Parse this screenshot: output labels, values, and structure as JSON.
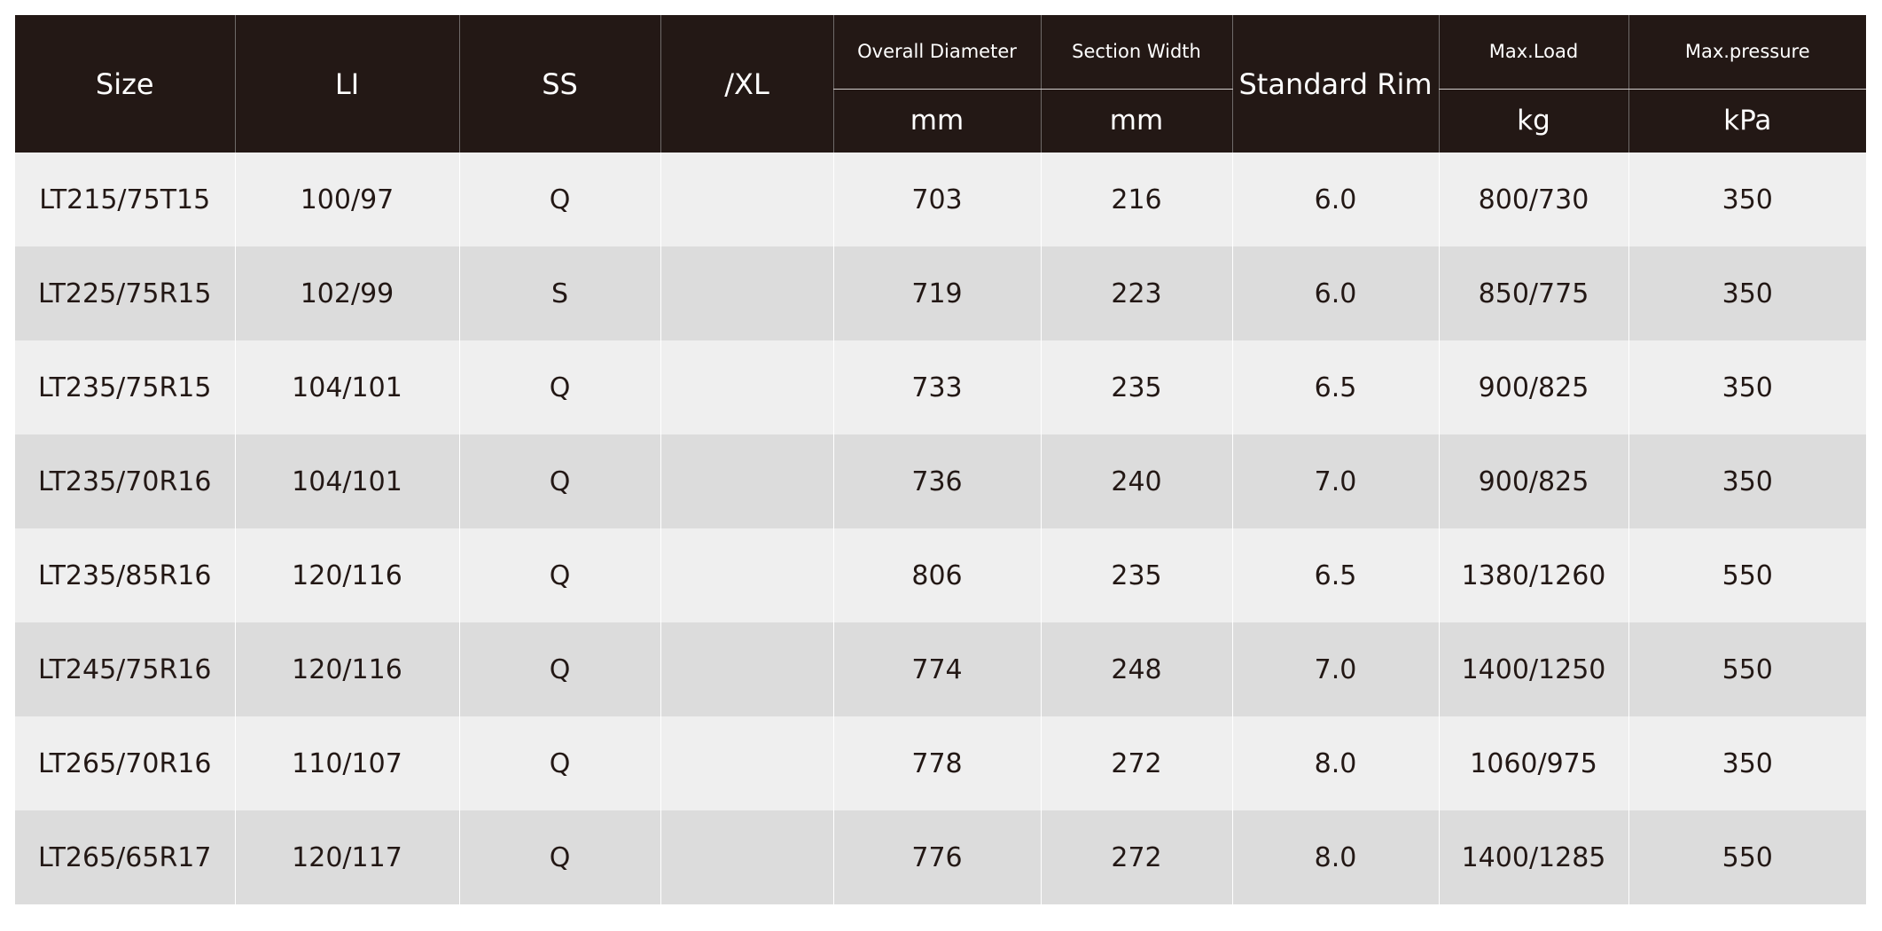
{
  "table": {
    "headers": {
      "size": "Size",
      "li": "LI",
      "ss": "SS",
      "xl": "/XL",
      "overall_diameter": "Overall Diameter",
      "overall_diameter_unit": "mm",
      "section_width": "Section Width",
      "section_width_unit": "mm",
      "standard_rim": "Standard Rim",
      "max_load": "Max.Load",
      "max_load_unit": "kg",
      "max_pressure": "Max.pressure",
      "max_pressure_unit": "kPa"
    },
    "rows": [
      {
        "size": "LT215/75T15",
        "li": "100/97",
        "ss": "Q",
        "xl": "",
        "diameter": "703",
        "width": "216",
        "rim": "6.0",
        "load": "800/730",
        "pressure": "350"
      },
      {
        "size": "LT225/75R15",
        "li": "102/99",
        "ss": "S",
        "xl": "",
        "diameter": "719",
        "width": "223",
        "rim": "6.0",
        "load": "850/775",
        "pressure": "350"
      },
      {
        "size": "LT235/75R15",
        "li": "104/101",
        "ss": "Q",
        "xl": "",
        "diameter": "733",
        "width": "235",
        "rim": "6.5",
        "load": "900/825",
        "pressure": "350"
      },
      {
        "size": "LT235/70R16",
        "li": "104/101",
        "ss": "Q",
        "xl": "",
        "diameter": "736",
        "width": "240",
        "rim": "7.0",
        "load": "900/825",
        "pressure": "350"
      },
      {
        "size": "LT235/85R16",
        "li": "120/116",
        "ss": "Q",
        "xl": "",
        "diameter": "806",
        "width": "235",
        "rim": "6.5",
        "load": "1380/1260",
        "pressure": "550"
      },
      {
        "size": "LT245/75R16",
        "li": "120/116",
        "ss": "Q",
        "xl": "",
        "diameter": "774",
        "width": "248",
        "rim": "7.0",
        "load": "1400/1250",
        "pressure": "550"
      },
      {
        "size": "LT265/70R16",
        "li": "110/107",
        "ss": "Q",
        "xl": "",
        "diameter": "778",
        "width": "272",
        "rim": "8.0",
        "load": "1060/975",
        "pressure": "350"
      },
      {
        "size": "LT265/65R17",
        "li": "120/117",
        "ss": "Q",
        "xl": "",
        "diameter": "776",
        "width": "272",
        "rim": "8.0",
        "load": "1400/1285",
        "pressure": "550"
      }
    ]
  },
  "colors": {
    "header_bg": "#231815",
    "header_text": "#ffffff",
    "row_light": "#efefef",
    "row_dark": "#dcdcdc",
    "body_text": "#231815"
  }
}
